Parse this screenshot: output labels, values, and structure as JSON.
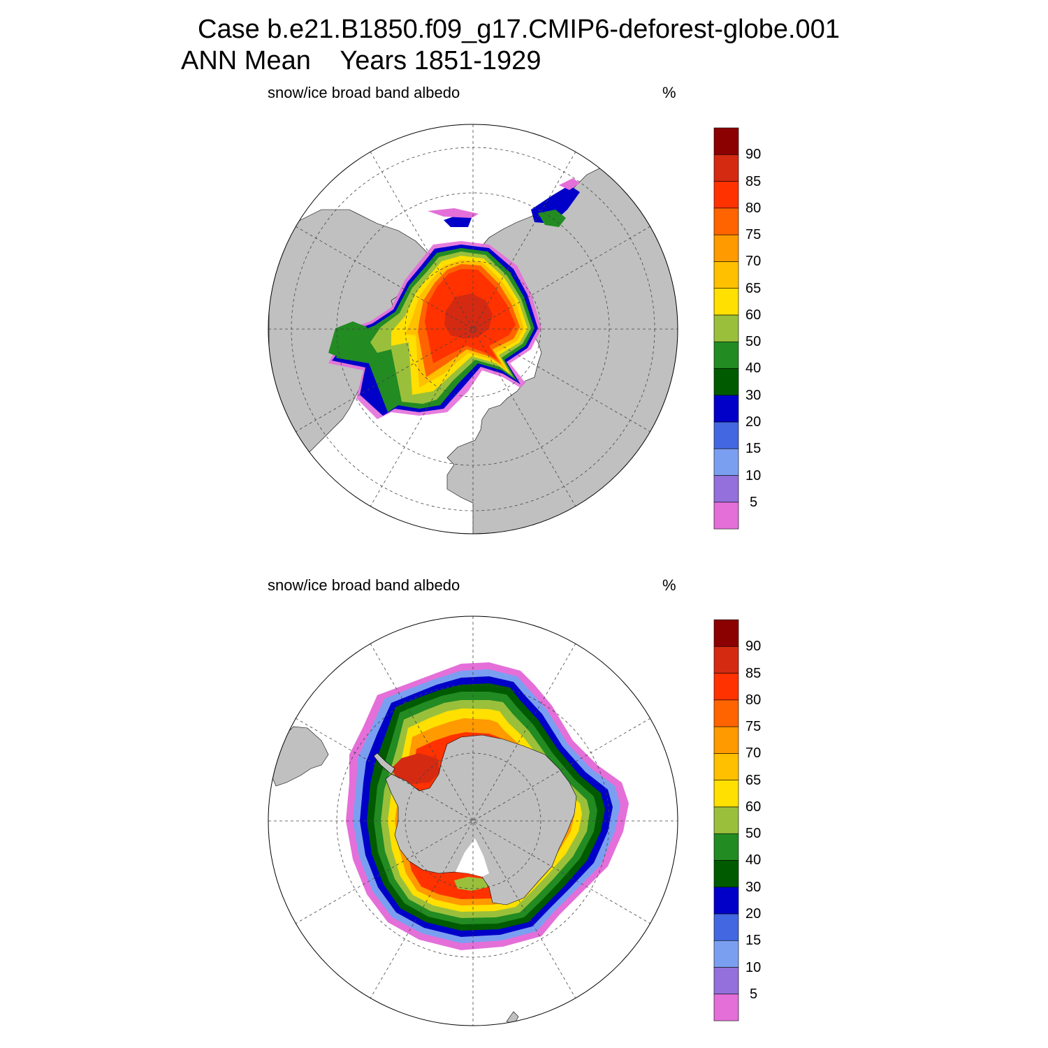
{
  "header": {
    "case_title": "Case b.e21.B1850.f09_g17.CMIP6-deforest-globe.001",
    "mean_label": "ANN Mean",
    "years_label": "Years 1851-1929"
  },
  "panels": [
    {
      "hemisphere": "north",
      "variable": "snow/ice broad band albedo",
      "units": "%"
    },
    {
      "hemisphere": "south",
      "variable": "snow/ice broad band albedo",
      "units": "%"
    }
  ],
  "colorbar": {
    "levels": [
      "5",
      "10",
      "15",
      "20",
      "30",
      "40",
      "50",
      "60",
      "65",
      "70",
      "75",
      "80",
      "85",
      "90"
    ],
    "colors": [
      "#e46fd9",
      "#9370db",
      "#7b9ff0",
      "#4267e0",
      "#0000c8",
      "#005a00",
      "#228b22",
      "#9ac03b",
      "#ffe000",
      "#ffc000",
      "#ff9a00",
      "#ff6400",
      "#ff3200",
      "#d42a12",
      "#8b0000"
    ]
  },
  "map_colors": {
    "land": "#c0c0c0",
    "ocean": "#ffffff",
    "grid": "#444444"
  }
}
